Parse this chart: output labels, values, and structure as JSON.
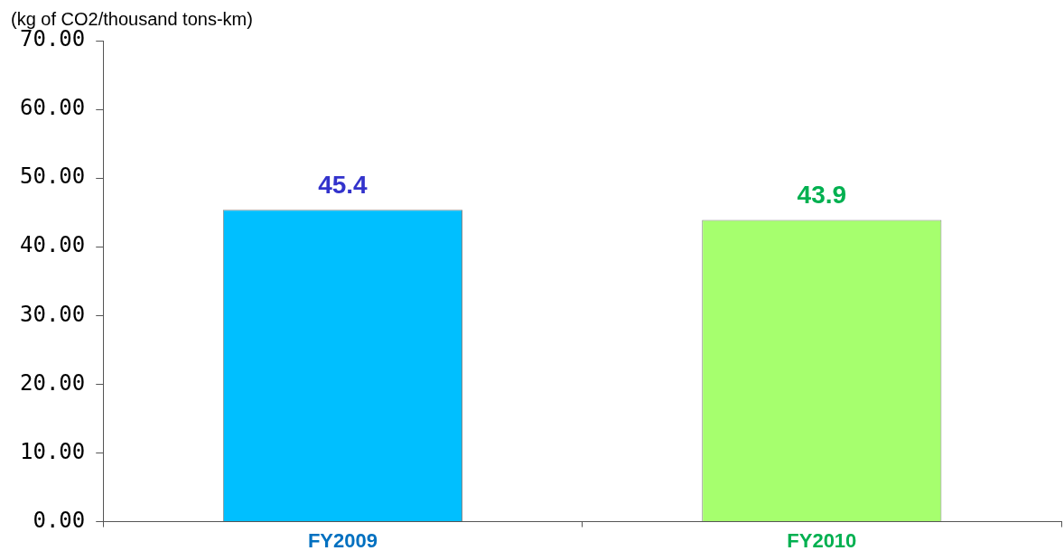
{
  "chart_data": {
    "type": "bar",
    "ylabel": "(kg of CO2/thousand tons-km)",
    "categories": [
      "FY2009",
      "FY2010"
    ],
    "values": [
      45.4,
      43.9
    ],
    "colors": [
      "#00bfff",
      "#a6ff6e"
    ],
    "ylim": [
      0,
      70
    ],
    "yticks": [
      {
        "value": 0,
        "label": "0.00"
      },
      {
        "value": 10,
        "label": "10.00"
      },
      {
        "value": 20,
        "label": "20.00"
      },
      {
        "value": 30,
        "label": "30.00"
      },
      {
        "value": 40,
        "label": "40.00"
      },
      {
        "value": 50,
        "label": "50.00"
      },
      {
        "value": 60,
        "label": "60.00"
      },
      {
        "value": 70,
        "label": "70.00"
      }
    ],
    "grid": false,
    "legend": false,
    "data_labels": true
  }
}
